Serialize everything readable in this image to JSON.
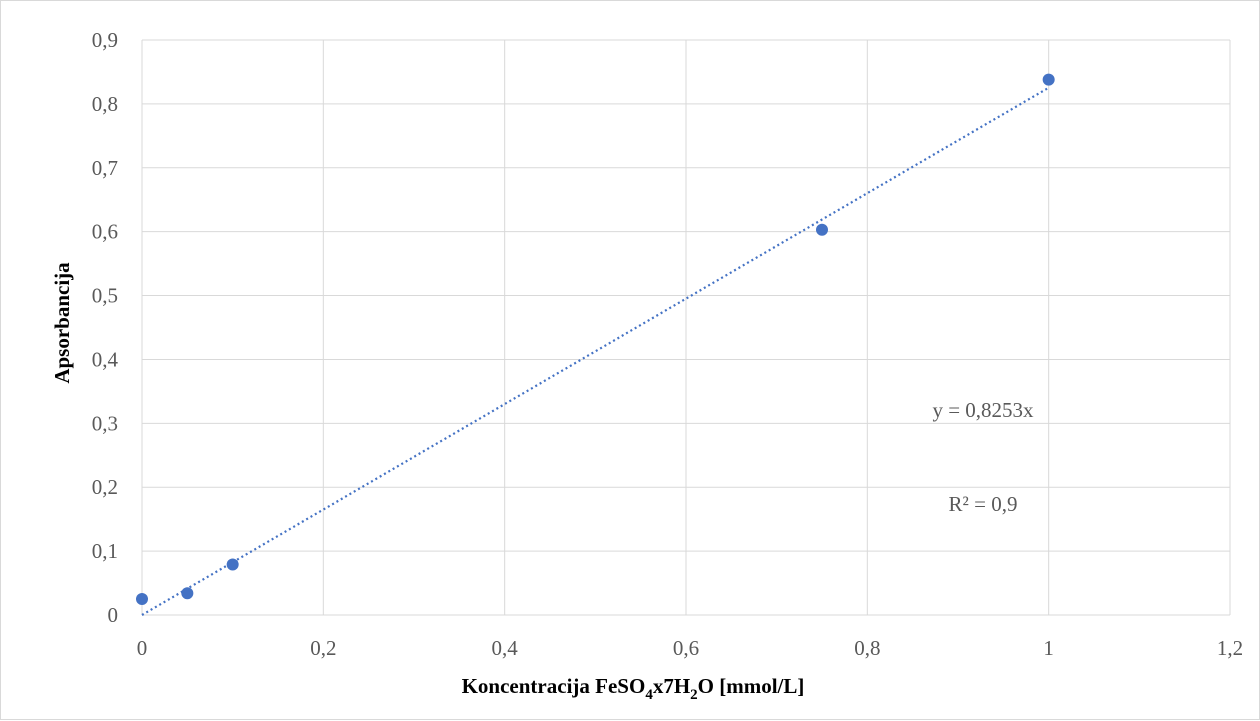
{
  "chart_data": {
    "type": "scatter",
    "title": "",
    "xlabel": "Koncentracija FeSO4x7H2O [mmol/L]",
    "xlabel_parts": {
      "pre": "Koncentracija  FeSO",
      "sub1": "4",
      "mid": "x7H",
      "sub2": "2",
      "post": "O [mmol/L]"
    },
    "ylabel": "Apsorbancija",
    "xlim": [
      0,
      1.2
    ],
    "ylim": [
      0,
      0.9
    ],
    "x_ticks": [
      0,
      0.2,
      0.4,
      0.6,
      0.8,
      1,
      1.2
    ],
    "y_ticks": [
      0,
      0.1,
      0.2,
      0.3,
      0.4,
      0.5,
      0.6,
      0.7,
      0.8,
      0.9
    ],
    "x_tick_labels": [
      "0",
      "0,2",
      "0,4",
      "0,6",
      "0,8",
      "1",
      "1,2"
    ],
    "y_tick_labels": [
      "0",
      "0,1",
      "0,2",
      "0,3",
      "0,4",
      "0,5",
      "0,6",
      "0,7",
      "0,8",
      "0,9"
    ],
    "grid": true,
    "series": [
      {
        "x": [
          0,
          0.05,
          0.1,
          0.75,
          1
        ],
        "y": [
          0.025,
          0.034,
          0.079,
          0.603,
          0.838
        ],
        "color": "#4472c4"
      }
    ],
    "trendline": {
      "type": "linear-through-origin",
      "slope": 0.8253,
      "x_range": [
        0,
        1
      ],
      "color": "#4472c4",
      "style": "dotted"
    },
    "annotations": {
      "equation": "y = 0,8253x",
      "r_squared": "R² = 0,9"
    }
  }
}
